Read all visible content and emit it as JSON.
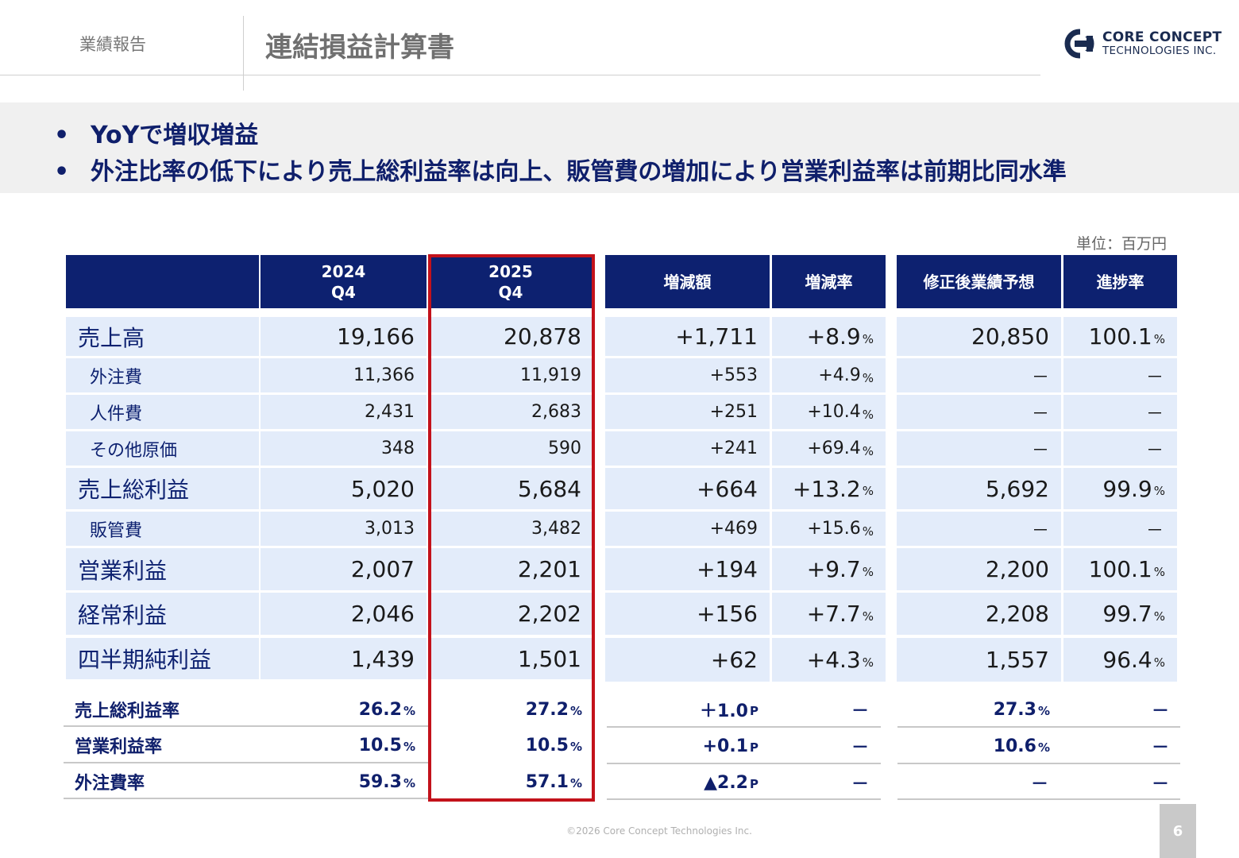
{
  "header": {
    "section": "業績報告",
    "title": "連結損益計算書",
    "logo_line1": "CORE CONCEPT",
    "logo_line2": "TECHNOLOGIES INC."
  },
  "summary": {
    "bullet": "•",
    "points": [
      "YoYで増収増益",
      "外注比率の低下により売上総利益率は向上、販管費の増加により営業利益率は前期比同水準"
    ]
  },
  "unit_note": "単位：百万円",
  "table": {
    "headers": {
      "fy2024": [
        "2024",
        "Q4"
      ],
      "fy2025": [
        "2025",
        "Q4"
      ],
      "change": "増減額",
      "change_rate": "増減率",
      "forecast": "修正後業績予想",
      "progress": "進捗率"
    },
    "rows": [
      {
        "label": "売上高",
        "v2024": "19,166",
        "v2025": "20,878",
        "change": "+1,711",
        "rate": "+8.9",
        "rate_unit": "%",
        "forecast": "20,850",
        "progress": "100.1",
        "progress_unit": "%"
      },
      {
        "label": "外注費",
        "v2024": "11,366",
        "v2025": "11,919",
        "change": "+553",
        "rate": "+4.9",
        "rate_unit": "%",
        "forecast": "－",
        "progress": "－",
        "progress_unit": ""
      },
      {
        "label": "人件費",
        "v2024": "2,431",
        "v2025": "2,683",
        "change": "+251",
        "rate": "+10.4",
        "rate_unit": "%",
        "forecast": "－",
        "progress": "－",
        "progress_unit": ""
      },
      {
        "label": "その他原価",
        "v2024": "348",
        "v2025": "590",
        "change": "+241",
        "rate": "+69.4",
        "rate_unit": "%",
        "forecast": "－",
        "progress": "－",
        "progress_unit": ""
      },
      {
        "label": "売上総利益",
        "v2024": "5,020",
        "v2025": "5,684",
        "change": "+664",
        "rate": "+13.2",
        "rate_unit": "%",
        "forecast": "5,692",
        "progress": "99.9",
        "progress_unit": "%"
      },
      {
        "label": "販管費",
        "v2024": "3,013",
        "v2025": "3,482",
        "change": "+469",
        "rate": "+15.6",
        "rate_unit": "%",
        "forecast": "－",
        "progress": "－",
        "progress_unit": ""
      },
      {
        "label": "営業利益",
        "v2024": "2,007",
        "v2025": "2,201",
        "change": "+194",
        "rate": "+9.7",
        "rate_unit": "%",
        "forecast": "2,200",
        "progress": "100.1",
        "progress_unit": "%"
      },
      {
        "label": "経常利益",
        "v2024": "2,046",
        "v2025": "2,202",
        "change": "+156",
        "rate": "+7.7",
        "rate_unit": "%",
        "forecast": "2,208",
        "progress": "99.7",
        "progress_unit": "%"
      },
      {
        "label": "四半期純利益",
        "v2024": "1,439",
        "v2025": "1,501",
        "change": "+62",
        "rate": "+4.3",
        "rate_unit": "%",
        "forecast": "1,557",
        "progress": "96.4",
        "progress_unit": "%"
      }
    ],
    "ratios": [
      {
        "label": "売上総利益率",
        "v2024": "26.2",
        "v2024_unit": "%",
        "v2025": "27.2",
        "v2025_unit": "%",
        "change": "＋1.0",
        "change_unit": "P",
        "rate": "－",
        "forecast": "27.3",
        "forecast_unit": "%",
        "progress": "－"
      },
      {
        "label": "営業利益率",
        "v2024": "10.5",
        "v2024_unit": "%",
        "v2025": "10.5",
        "v2025_unit": "%",
        "change": "+0.1",
        "change_unit": "P",
        "rate": "－",
        "forecast": "10.6",
        "forecast_unit": "%",
        "progress": "－"
      },
      {
        "label": "外注費率",
        "v2024": "59.3",
        "v2024_unit": "%",
        "v2025": "57.1",
        "v2025_unit": "%",
        "change": "▲2.2",
        "change_unit": "P",
        "rate": "－",
        "forecast": "－",
        "forecast_unit": "",
        "progress": "－"
      }
    ]
  },
  "footer": {
    "copyright": "©2026 Core Concept Technologies Inc.",
    "page_number": "6"
  },
  "colors": {
    "header_bg": "#0d2170",
    "row_bg": "#e3ecfa",
    "accent_text": "#0f1f6b",
    "highlight_border": "#c3121b",
    "summary_bg": "#f0f0f0"
  }
}
